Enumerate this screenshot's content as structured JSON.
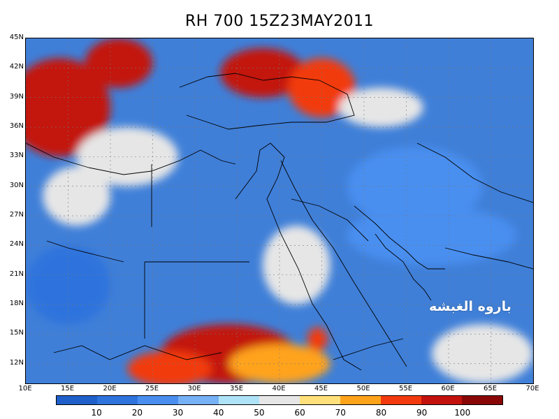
{
  "title": "RH 700 15Z23MAY2011",
  "watermark": "باروه الغبشه",
  "lat_labels": [
    "45N",
    "42N",
    "39N",
    "36N",
    "33N",
    "30N",
    "27N",
    "24N",
    "21N",
    "18N",
    "15N",
    "12N"
  ],
  "lon_labels": [
    "10E",
    "15E",
    "20E",
    "25E",
    "30E",
    "35E",
    "40E",
    "45E",
    "50E",
    "55E",
    "60E",
    "65E",
    "70E"
  ],
  "colorbar": {
    "labels": [
      "10",
      "20",
      "30",
      "40",
      "50",
      "60",
      "70",
      "80",
      "90",
      "100"
    ],
    "colors": [
      "#1f5fc9",
      "#2f73dd",
      "#4a8ff0",
      "#76b0f5",
      "#aee3f7",
      "#e6e6e6",
      "#ffe07a",
      "#ffa31a",
      "#f23a0e",
      "#c3120d",
      "#8a0707"
    ]
  },
  "map": {
    "lon_range": [
      10,
      70
    ],
    "lat_range": [
      10,
      45
    ],
    "regions": [
      {
        "name": "nw-red",
        "value": 95,
        "lon": 14,
        "lat": 38,
        "rlon": 6,
        "rlat": 5
      },
      {
        "name": "balkans-red",
        "value": 92,
        "lon": 21,
        "lat": 42.5,
        "rlon": 4,
        "rlat": 2.5
      },
      {
        "name": "anatolia-red",
        "value": 90,
        "lon": 38,
        "lat": 41.5,
        "rlon": 5,
        "rlat": 2.5
      },
      {
        "name": "caucasus-orange",
        "value": 80,
        "lon": 45,
        "lat": 40,
        "rlon": 4,
        "rlat": 3
      },
      {
        "name": "ethiopia-red",
        "value": 92,
        "lon": 34,
        "lat": 13,
        "rlon": 8,
        "rlat": 3
      },
      {
        "name": "ethiopia-orange",
        "value": 78,
        "lon": 40,
        "lat": 12,
        "rlon": 6,
        "rlat": 2
      },
      {
        "name": "sudan-orange",
        "value": 80,
        "lon": 27,
        "lat": 11.5,
        "rlon": 5,
        "rlat": 1.8
      },
      {
        "name": "yemen-red",
        "value": 88,
        "lon": 44.5,
        "lat": 14.5,
        "rlon": 1.2,
        "rlat": 1.2
      },
      {
        "name": "med-light",
        "value": 55,
        "lon": 22,
        "lat": 33,
        "rlon": 6,
        "rlat": 3
      },
      {
        "name": "libya-light",
        "value": 50,
        "lon": 16,
        "lat": 29,
        "rlon": 4,
        "rlat": 3
      },
      {
        "name": "iran-north-light",
        "value": 55,
        "lon": 52,
        "lat": 38,
        "rlon": 5,
        "rlat": 2
      },
      {
        "name": "arabia-light",
        "value": 55,
        "lon": 42,
        "lat": 22,
        "rlon": 4,
        "rlat": 4
      },
      {
        "name": "somalia-light",
        "value": 55,
        "lon": 64,
        "lat": 13,
        "rlon": 6,
        "rlat": 3
      },
      {
        "name": "iran-dark",
        "value": 20,
        "lon": 56,
        "lat": 30,
        "rlon": 8,
        "rlat": 4
      },
      {
        "name": "sahara-dark",
        "value": 15,
        "lon": 15,
        "lat": 20,
        "rlon": 5,
        "rlat": 4
      },
      {
        "name": "gulf-dark",
        "value": 25,
        "lon": 58,
        "lat": 25,
        "rlon": 10,
        "rlat": 3
      }
    ],
    "cities_none": []
  }
}
